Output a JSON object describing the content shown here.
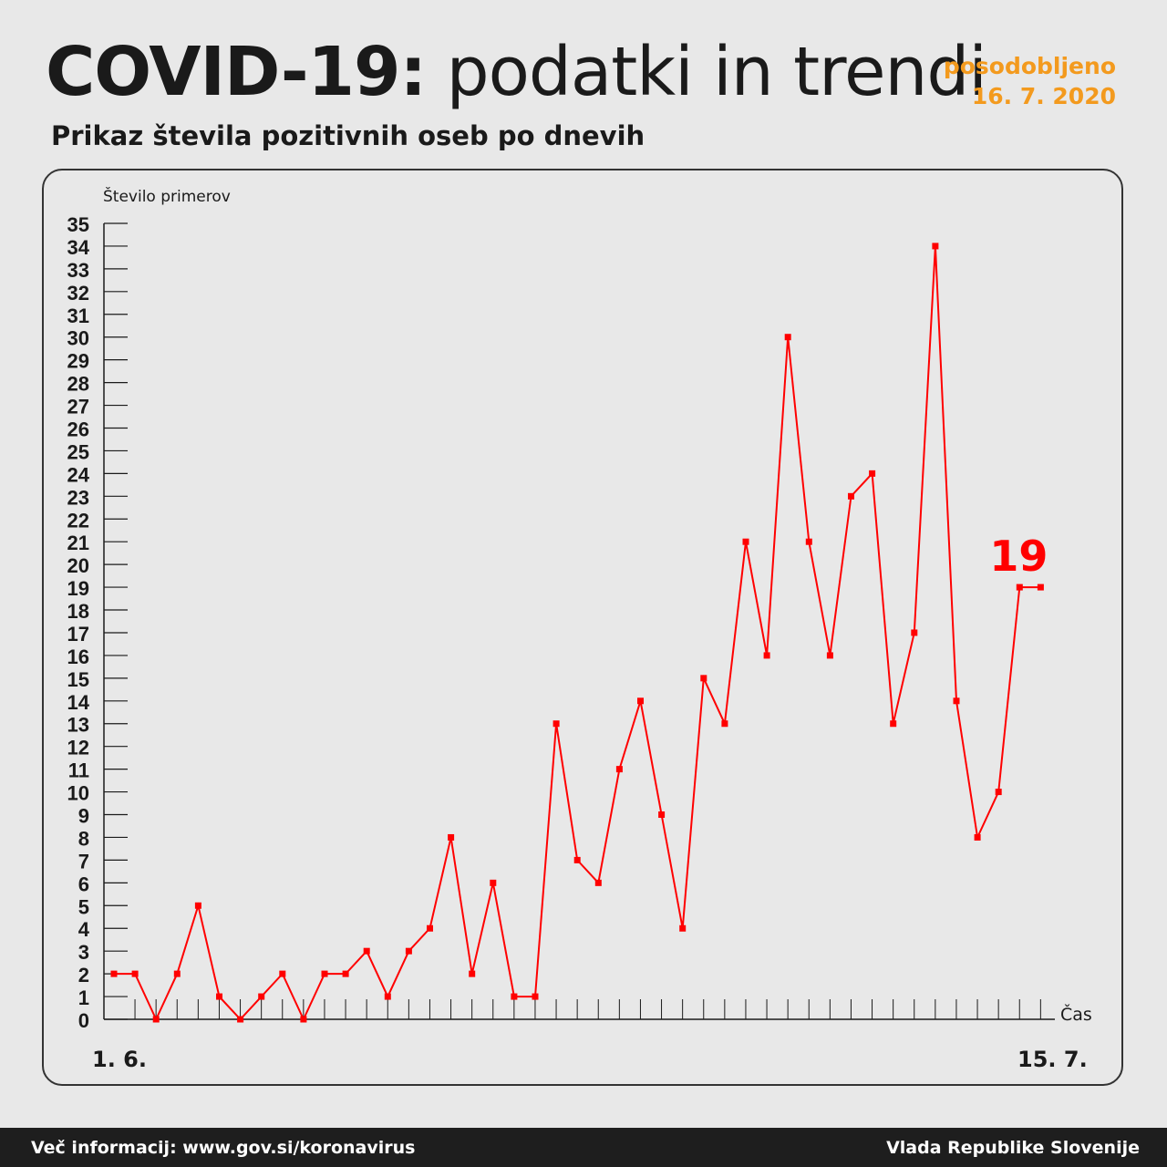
{
  "header": {
    "title_bold": "COVID-19:",
    "title_light": "podatki in trendi",
    "updated_label": "posodobljeno",
    "updated_date": "16. 7. 2020",
    "subtitle": "Prikaz števila pozitivnih oseb po dnevih"
  },
  "footer": {
    "info": "Več informacij: www.gov.si/koronavirus",
    "org": "Vlada Republike Slovenije"
  },
  "colors": {
    "line": "#ff0000",
    "accent": "#f39a1e",
    "text": "#1a1a1a"
  },
  "chart_data": {
    "type": "line",
    "title": "",
    "ylabel": "Število primerov",
    "xlabel": "Čas",
    "x_start_label": "1. 6.",
    "x_end_label": "15. 7.",
    "ylim": [
      0,
      35
    ],
    "yticks": [
      0,
      1,
      2,
      3,
      4,
      5,
      6,
      7,
      8,
      9,
      10,
      11,
      12,
      13,
      14,
      15,
      16,
      17,
      18,
      19,
      20,
      21,
      22,
      23,
      24,
      25,
      26,
      27,
      28,
      29,
      30,
      31,
      32,
      33,
      34,
      35
    ],
    "grid": false,
    "last_value_label": "19",
    "series": [
      {
        "values": [
          2,
          2,
          0,
          2,
          5,
          1,
          0,
          1,
          2,
          0,
          2,
          2,
          3,
          1,
          3,
          4,
          8,
          2,
          6,
          1,
          1,
          13,
          7,
          6,
          11,
          14,
          9,
          4,
          15,
          13,
          21,
          16,
          30,
          21,
          16,
          23,
          24,
          13,
          17,
          34,
          14,
          8,
          10,
          19,
          19
        ]
      }
    ]
  }
}
